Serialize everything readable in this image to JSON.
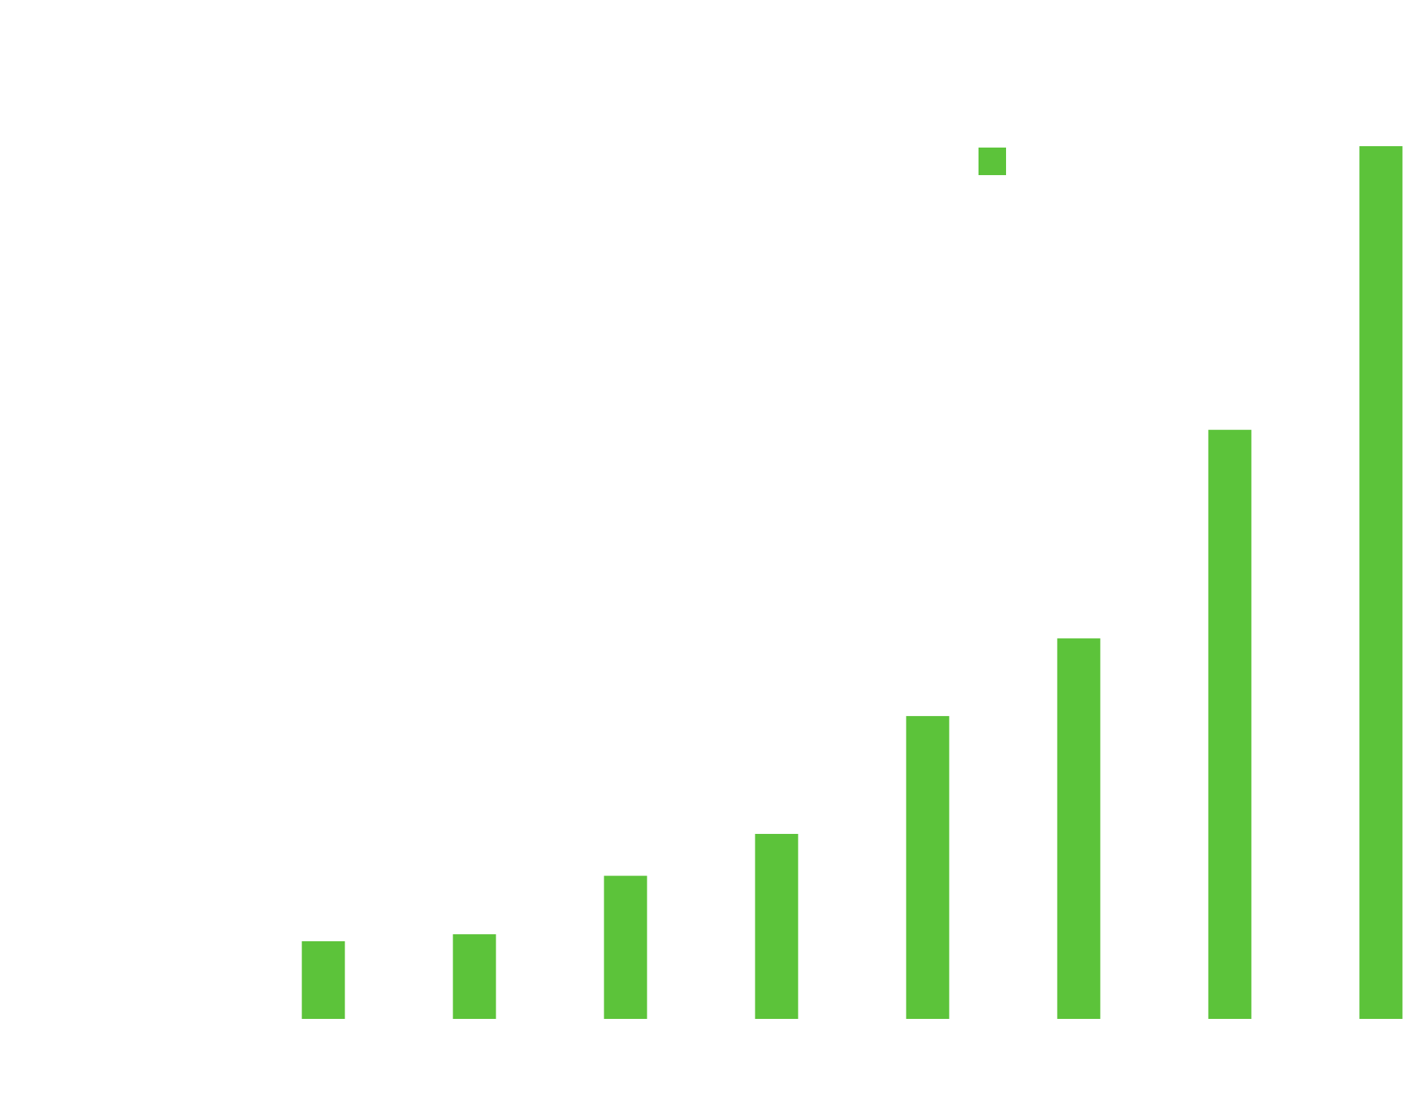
{
  "chart_data": {
    "type": "bar",
    "title": "",
    "xlabel": "",
    "ylabel": "",
    "grid": false,
    "legend": {
      "visible": true,
      "placement": "top-right",
      "entries": [
        {
          "name": "",
          "color": "#5CC33A"
        }
      ]
    },
    "ylim": [
      0,
      1
    ],
    "categories": [
      "",
      "",
      "",
      "",
      "",
      "",
      "",
      ""
    ],
    "values": [
      0.089,
      0.097,
      0.164,
      0.212,
      0.347,
      0.436,
      0.675,
      1.0
    ],
    "series": [
      {
        "name": "",
        "color": "#5CC33A",
        "values": [
          0.089,
          0.097,
          0.164,
          0.212,
          0.347,
          0.436,
          0.675,
          1.0
        ]
      }
    ]
  }
}
